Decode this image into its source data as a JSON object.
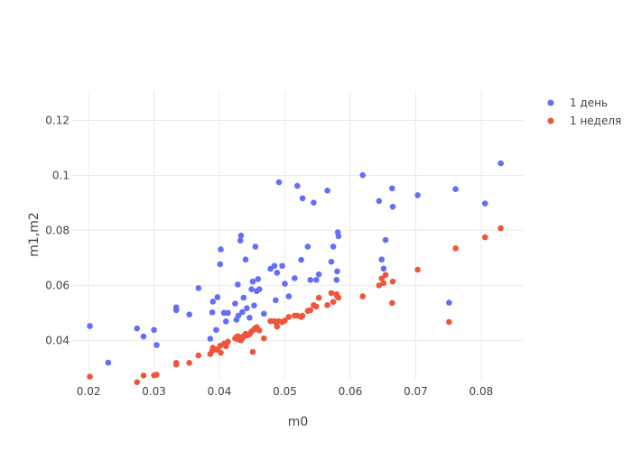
{
  "chart_data": {
    "type": "scatter",
    "xlabel": "m0",
    "ylabel": "m1,m2",
    "xlim": [
      0.0175,
      0.0865
    ],
    "ylim": [
      0.026,
      0.131
    ],
    "x_ticks": [
      0.02,
      0.03,
      0.04,
      0.05,
      0.06,
      0.07,
      0.08
    ],
    "y_ticks": [
      0.04,
      0.06,
      0.08,
      0.1,
      0.12
    ],
    "x_tick_labels": [
      "0.02",
      "0.03",
      "0.04",
      "0.05",
      "0.06",
      "0.07",
      "0.08"
    ],
    "y_tick_labels": [
      "0.04",
      "0.06",
      "0.08",
      "0.1",
      "0.12"
    ],
    "grid": true,
    "legend_position": "top-right",
    "series": [
      {
        "name": "1 день",
        "color": "#636efa",
        "points": [
          [
            0.0202,
            0.0452
          ],
          [
            0.023,
            0.0319
          ],
          [
            0.0274,
            0.0443
          ],
          [
            0.0284,
            0.0414
          ],
          [
            0.03,
            0.0438
          ],
          [
            0.0304,
            0.0383
          ],
          [
            0.0334,
            0.052
          ],
          [
            0.0334,
            0.051
          ],
          [
            0.0354,
            0.0494
          ],
          [
            0.0368,
            0.059
          ],
          [
            0.0386,
            0.0406
          ],
          [
            0.0389,
            0.0502
          ],
          [
            0.039,
            0.0541
          ],
          [
            0.0395,
            0.0438
          ],
          [
            0.0397,
            0.0557
          ],
          [
            0.0401,
            0.0677
          ],
          [
            0.0402,
            0.0731
          ],
          [
            0.0407,
            0.05
          ],
          [
            0.041,
            0.0469
          ],
          [
            0.0413,
            0.05
          ],
          [
            0.0424,
            0.0534
          ],
          [
            0.0426,
            0.0475
          ],
          [
            0.0428,
            0.0603
          ],
          [
            0.0429,
            0.049
          ],
          [
            0.0432,
            0.0763
          ],
          [
            0.0433,
            0.0781
          ],
          [
            0.0435,
            0.0503
          ],
          [
            0.0437,
            0.0555
          ],
          [
            0.044,
            0.0694
          ],
          [
            0.0442,
            0.0517
          ],
          [
            0.0446,
            0.0482
          ],
          [
            0.0449,
            0.0586
          ],
          [
            0.0451,
            0.0614
          ],
          [
            0.0453,
            0.0527
          ],
          [
            0.0455,
            0.0741
          ],
          [
            0.0457,
            0.0579
          ],
          [
            0.0459,
            0.0623
          ],
          [
            0.0461,
            0.0586
          ],
          [
            0.0468,
            0.0497
          ],
          [
            0.0478,
            0.066
          ],
          [
            0.0484,
            0.0671
          ],
          [
            0.0486,
            0.0546
          ],
          [
            0.0488,
            0.0646
          ],
          [
            0.0491,
            0.0975
          ],
          [
            0.0496,
            0.0671
          ],
          [
            0.05,
            0.0606
          ],
          [
            0.0506,
            0.056
          ],
          [
            0.0515,
            0.0626
          ],
          [
            0.0519,
            0.0962
          ],
          [
            0.0525,
            0.0693
          ],
          [
            0.0527,
            0.0917
          ],
          [
            0.0535,
            0.0741
          ],
          [
            0.0539,
            0.062
          ],
          [
            0.0544,
            0.0901
          ],
          [
            0.0548,
            0.062
          ],
          [
            0.0552,
            0.064
          ],
          [
            0.0565,
            0.0945
          ],
          [
            0.0571,
            0.0686
          ],
          [
            0.0574,
            0.0741
          ],
          [
            0.0579,
            0.062
          ],
          [
            0.058,
            0.0651
          ],
          [
            0.0581,
            0.0793
          ],
          [
            0.0582,
            0.0779
          ],
          [
            0.0619,
            0.1001
          ],
          [
            0.0644,
            0.0907
          ],
          [
            0.0648,
            0.0694
          ],
          [
            0.0651,
            0.0661
          ],
          [
            0.0654,
            0.0765
          ],
          [
            0.0664,
            0.0953
          ],
          [
            0.0665,
            0.0886
          ],
          [
            0.0703,
            0.0928
          ],
          [
            0.0751,
            0.0537
          ],
          [
            0.0761,
            0.095
          ],
          [
            0.0806,
            0.0898
          ],
          [
            0.083,
            0.1044
          ]
        ]
      },
      {
        "name": "1 неделя",
        "color": "#ef553b",
        "points": [
          [
            0.0202,
            0.0268
          ],
          [
            0.0274,
            0.0248
          ],
          [
            0.0284,
            0.0272
          ],
          [
            0.03,
            0.0273
          ],
          [
            0.0304,
            0.0275
          ],
          [
            0.0334,
            0.0312
          ],
          [
            0.0334,
            0.0318
          ],
          [
            0.0354,
            0.0318
          ],
          [
            0.0368,
            0.0345
          ],
          [
            0.0386,
            0.035
          ],
          [
            0.0389,
            0.0362
          ],
          [
            0.039,
            0.0373
          ],
          [
            0.0395,
            0.0366
          ],
          [
            0.0397,
            0.0367
          ],
          [
            0.0401,
            0.038
          ],
          [
            0.0402,
            0.0355
          ],
          [
            0.0407,
            0.0388
          ],
          [
            0.041,
            0.0379
          ],
          [
            0.0413,
            0.0395
          ],
          [
            0.0424,
            0.0407
          ],
          [
            0.0426,
            0.0412
          ],
          [
            0.0428,
            0.0415
          ],
          [
            0.0429,
            0.0403
          ],
          [
            0.0432,
            0.041
          ],
          [
            0.0433,
            0.04
          ],
          [
            0.0435,
            0.0408
          ],
          [
            0.0437,
            0.0415
          ],
          [
            0.044,
            0.0424
          ],
          [
            0.0442,
            0.0418
          ],
          [
            0.0446,
            0.0422
          ],
          [
            0.0449,
            0.0432
          ],
          [
            0.0451,
            0.0358
          ],
          [
            0.0453,
            0.044
          ],
          [
            0.0455,
            0.0445
          ],
          [
            0.0457,
            0.0448
          ],
          [
            0.0459,
            0.044
          ],
          [
            0.0461,
            0.0436
          ],
          [
            0.0468,
            0.0407
          ],
          [
            0.0478,
            0.047
          ],
          [
            0.0484,
            0.047
          ],
          [
            0.0486,
            0.0466
          ],
          [
            0.0488,
            0.045
          ],
          [
            0.0491,
            0.047
          ],
          [
            0.0496,
            0.0466
          ],
          [
            0.05,
            0.0472
          ],
          [
            0.0506,
            0.0485
          ],
          [
            0.0515,
            0.049
          ],
          [
            0.0519,
            0.049
          ],
          [
            0.0525,
            0.0485
          ],
          [
            0.0527,
            0.049
          ],
          [
            0.0535,
            0.0507
          ],
          [
            0.0539,
            0.051
          ],
          [
            0.0544,
            0.0528
          ],
          [
            0.0548,
            0.0523
          ],
          [
            0.0552,
            0.0555
          ],
          [
            0.0565,
            0.0528
          ],
          [
            0.0571,
            0.0572
          ],
          [
            0.0574,
            0.054
          ],
          [
            0.0579,
            0.0568
          ],
          [
            0.058,
            0.056
          ],
          [
            0.0582,
            0.0555
          ],
          [
            0.0619,
            0.056
          ],
          [
            0.0644,
            0.06
          ],
          [
            0.0648,
            0.0625
          ],
          [
            0.0651,
            0.0608
          ],
          [
            0.0654,
            0.0638
          ],
          [
            0.0664,
            0.0536
          ],
          [
            0.0665,
            0.0614
          ],
          [
            0.0703,
            0.0657
          ],
          [
            0.0751,
            0.0467
          ],
          [
            0.0761,
            0.0735
          ],
          [
            0.0806,
            0.0775
          ],
          [
            0.083,
            0.0808
          ]
        ]
      }
    ]
  }
}
